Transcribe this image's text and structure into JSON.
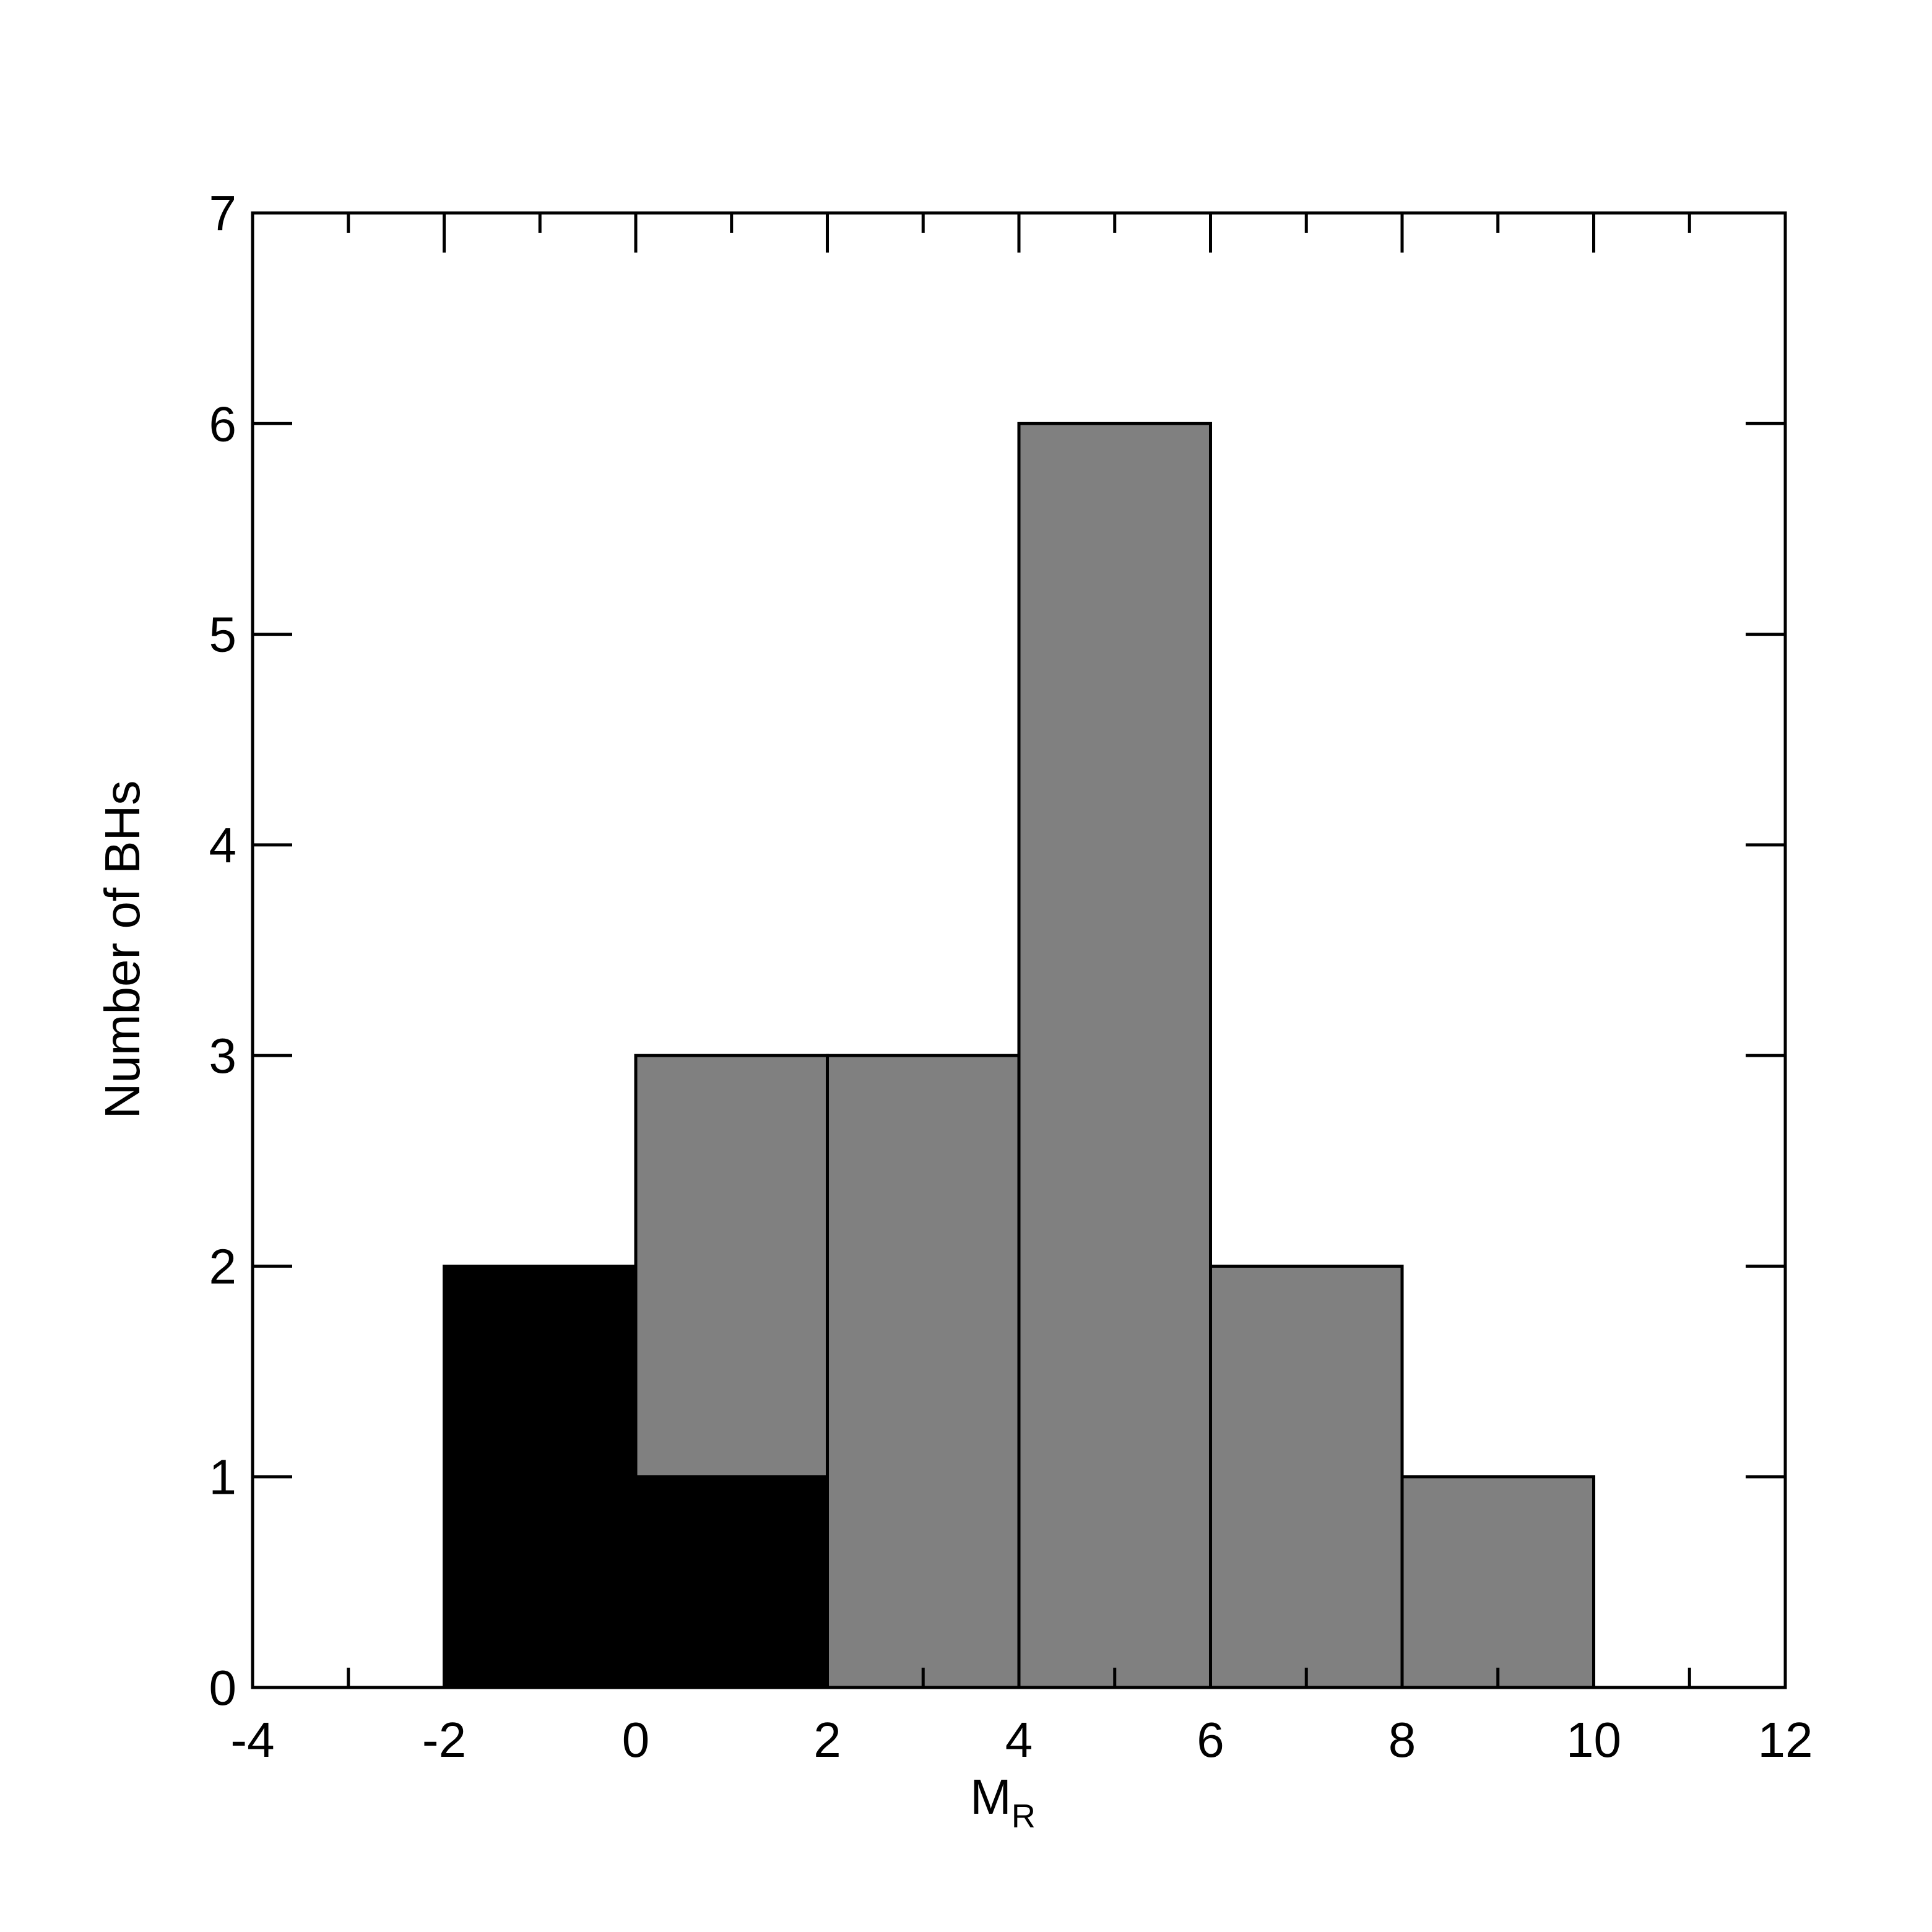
{
  "chart_data": {
    "type": "histogram",
    "stacked": true,
    "x_label": {
      "text": "M",
      "subscript": "R"
    },
    "y_label": "Number of BHs",
    "bins": [
      -2,
      0,
      2,
      4,
      6,
      8,
      10
    ],
    "series": [
      {
        "color": "#000000",
        "values": [
          2,
          1,
          0,
          0,
          0,
          0
        ]
      },
      {
        "color": "#808080",
        "values": [
          0,
          2,
          3,
          6,
          2,
          1
        ]
      }
    ],
    "xlim": [
      -4,
      12
    ],
    "xticks": [
      -4,
      -2,
      0,
      2,
      4,
      6,
      8,
      10,
      12
    ],
    "x_minor_ticks": [
      -3,
      -1,
      1,
      3,
      5,
      7,
      9,
      11
    ],
    "ylim": [
      0,
      7
    ],
    "yticks": [
      0,
      1,
      2,
      3,
      4,
      5,
      6,
      7
    ]
  }
}
